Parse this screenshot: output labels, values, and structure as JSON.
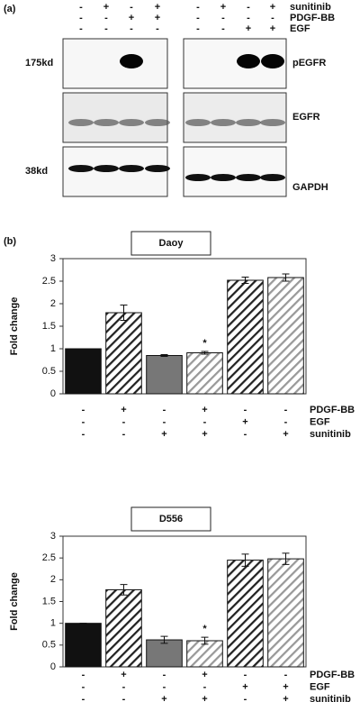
{
  "panel_a": {
    "label": "(a)",
    "treatments": [
      {
        "name": "sunitinib",
        "signs": [
          "-",
          "+",
          "-",
          "+",
          "-",
          "+",
          "-",
          "+"
        ]
      },
      {
        "name": "PDGF-BB",
        "signs": [
          "-",
          "-",
          "+",
          "+",
          "-",
          "-",
          "-",
          "-"
        ]
      },
      {
        "name": "EGF",
        "signs": [
          "-",
          "-",
          "-",
          "-",
          "-",
          "-",
          "+",
          "+"
        ]
      }
    ],
    "blots": [
      {
        "marker": "175kd",
        "name": "pEGFR"
      },
      {
        "marker": "",
        "name": "EGFR"
      },
      {
        "marker": "38kd",
        "name": "GAPDH"
      }
    ]
  },
  "panel_b_label": "(b)",
  "chart_data": [
    {
      "type": "bar",
      "title": "Daoy",
      "y_label": "Fold change",
      "values": [
        1,
        1.8,
        0.85,
        0.91,
        2.52,
        2.58
      ],
      "errors": [
        0,
        0.17,
        0.02,
        0.03,
        0.07,
        0.08
      ],
      "colors": [
        "#111111",
        "#222222",
        "#777777",
        "#999999",
        "#222222",
        "#999999"
      ],
      "bar_styles": [
        "solid",
        "hatch",
        "solid",
        "hatch",
        "hatch",
        "hatch"
      ],
      "annotation": "*",
      "ylim": [
        0,
        3
      ],
      "yticks": [
        0,
        0.5,
        1,
        1.5,
        2,
        2.5,
        3
      ],
      "treatments": [
        {
          "name": "PDGF-BB",
          "signs": [
            "-",
            "+",
            "-",
            "+",
            "-",
            "-"
          ]
        },
        {
          "name": "EGF",
          "signs": [
            "-",
            "-",
            "-",
            "-",
            "+",
            "-"
          ]
        },
        {
          "name": "sunitinib",
          "signs": [
            "-",
            "-",
            "+",
            "+",
            "-",
            "+"
          ]
        }
      ]
    },
    {
      "type": "bar",
      "title": "D556",
      "y_label": "Fold change",
      "values": [
        1,
        1.77,
        0.62,
        0.6,
        2.45,
        2.48
      ],
      "errors": [
        0,
        0.12,
        0.08,
        0.08,
        0.14,
        0.13
      ],
      "colors": [
        "#111111",
        "#222222",
        "#777777",
        "#999999",
        "#222222",
        "#999999"
      ],
      "bar_styles": [
        "solid",
        "hatch",
        "solid",
        "hatch",
        "hatch",
        "hatch"
      ],
      "annotation": "*",
      "ylim": [
        0,
        3
      ],
      "yticks": [
        0,
        0.5,
        1,
        1.5,
        2,
        2.5,
        3
      ],
      "treatments": [
        {
          "name": "PDGF-BB",
          "signs": [
            "-",
            "+",
            "-",
            "+",
            "-",
            "-"
          ]
        },
        {
          "name": "EGF",
          "signs": [
            "-",
            "-",
            "-",
            "-",
            "+",
            "+"
          ]
        },
        {
          "name": "sunitinib",
          "signs": [
            "-",
            "-",
            "+",
            "+",
            "-",
            "+"
          ]
        }
      ]
    }
  ]
}
